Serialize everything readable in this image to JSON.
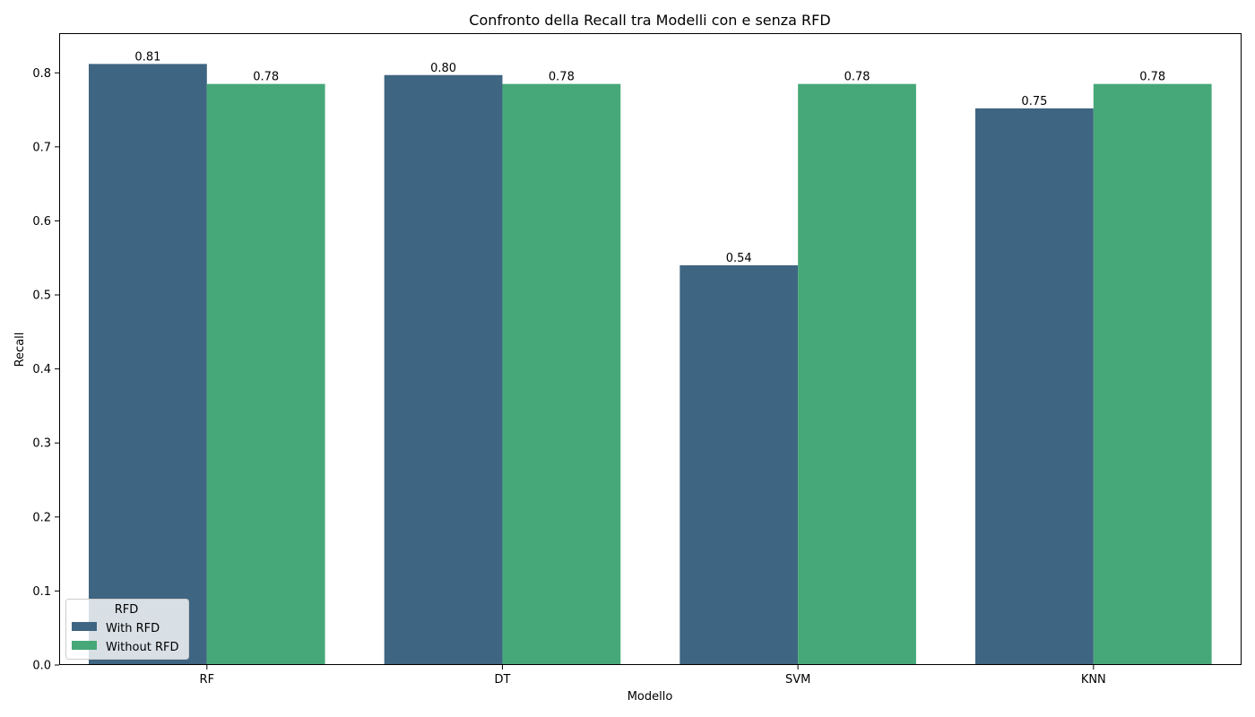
{
  "chart_data": {
    "type": "bar",
    "title": "Confronto della Recall tra Modelli con e senza RFD",
    "xlabel": "Modello",
    "ylabel": "Recall",
    "categories": [
      "RF",
      "DT",
      "SVM",
      "KNN"
    ],
    "series": [
      {
        "name": "With RFD",
        "values": [
          0.812,
          0.797,
          0.54,
          0.752
        ],
        "labels": [
          "0.81",
          "0.80",
          "0.54",
          "0.75"
        ],
        "color": "#3e6582"
      },
      {
        "name": "Without RFD",
        "values": [
          0.785,
          0.785,
          0.785,
          0.785
        ],
        "labels": [
          "0.78",
          "0.78",
          "0.78",
          "0.78"
        ],
        "color": "#46a878"
      }
    ],
    "ylim": [
      0,
      0.8536
    ],
    "yticks": [
      "0.0",
      "0.1",
      "0.2",
      "0.3",
      "0.4",
      "0.5",
      "0.6",
      "0.7",
      "0.8"
    ],
    "grid": false,
    "legend": {
      "title": "RFD",
      "position": "bottom-left"
    }
  }
}
